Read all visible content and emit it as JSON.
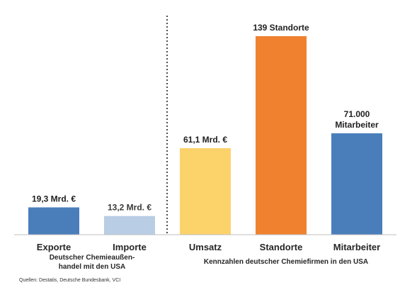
{
  "chart_data": {
    "type": "bar",
    "title": "",
    "xlabel": "",
    "ylabel": "",
    "legend": "none",
    "grid": false,
    "bars": [
      {
        "category": "Exporte",
        "value": 19.3,
        "value_label": [
          "19,3 Mrd. €"
        ],
        "color": "#4a7ebb",
        "unit": "Mrd. €"
      },
      {
        "category": "Importe",
        "value": 13.2,
        "value_label": [
          "13,2 Mrd. €"
        ],
        "color": "#b9cde5",
        "unit": "Mrd. €"
      },
      {
        "category": "Umsatz",
        "value": 61.1,
        "value_label": [
          "61,1 Mrd. €"
        ],
        "color": "#fcd26b",
        "unit": "Mrd. €"
      },
      {
        "category": "Standorte",
        "value": 139,
        "value_label": [
          "139 Standorte"
        ],
        "color": "#f0812f",
        "unit": "Standorte"
      },
      {
        "category": "Mitarbeiter",
        "value": 71000,
        "value_label": [
          "71.000",
          "Mitarbeiter"
        ],
        "color": "#4a7ebb",
        "unit": "Mitarbeiter"
      }
    ],
    "groups": [
      {
        "label_lines": [
          "Deutscher Chemieaußen-",
          "handel mit den USA"
        ],
        "categories": [
          "Exporte",
          "Importe"
        ]
      },
      {
        "label_lines": [
          "Kennzahlen deutscher Chemiefirmen in den USA"
        ],
        "categories": [
          "Umsatz",
          "Standorte",
          "Mitarbeiter"
        ]
      }
    ],
    "divider": "dotted vertical line between the two groups",
    "note": "Quellen: Destatis, Deutsche Bundesbank, VCI"
  }
}
